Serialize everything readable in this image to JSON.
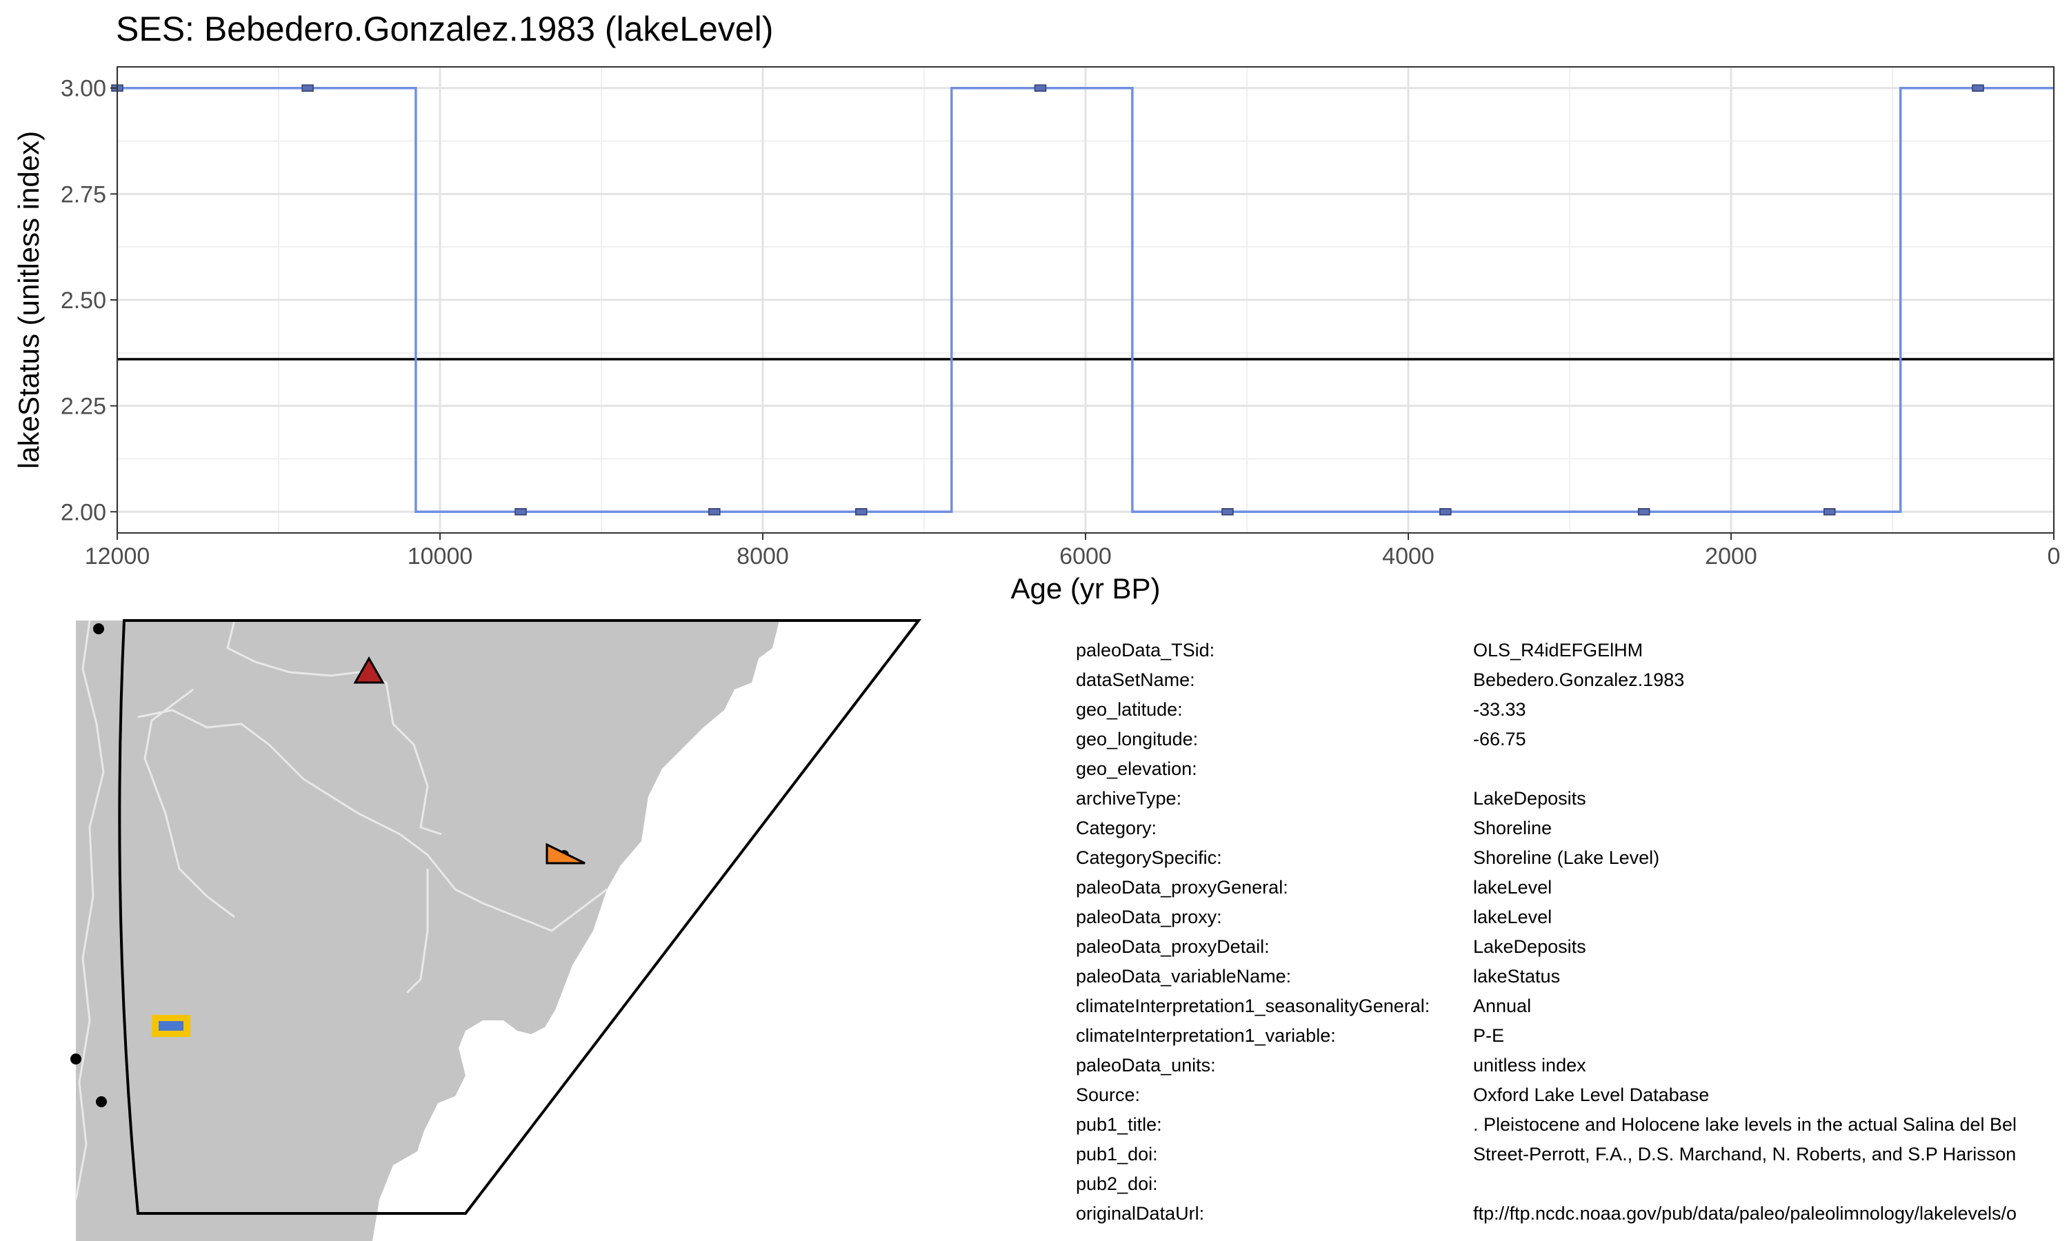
{
  "chart_data": {
    "type": "line",
    "title": "SES: Bebedero.Gonzalez.1983 (lakeLevel)",
    "xlabel": "Age (yr BP)",
    "ylabel": "lakeStatus (unitless index)",
    "xlim": [
      12000,
      0
    ],
    "ylim": [
      3.05,
      1.95
    ],
    "x_reversed": true,
    "y_reversed": true,
    "x_ticks": [
      "12000",
      "10000",
      "8000",
      "6000",
      "4000",
      "2000",
      "0"
    ],
    "x_tick_values": [
      12000,
      10000,
      8000,
      6000,
      4000,
      2000,
      0
    ],
    "y_ticks": [
      "2.00",
      "2.25",
      "2.50",
      "2.75",
      "3.00"
    ],
    "y_tick_values": [
      2.0,
      2.25,
      2.5,
      2.75,
      3.0
    ],
    "grid": true,
    "step_series": {
      "style": "step",
      "color": "#6F8FE3",
      "x": [
        12000,
        10150,
        10150,
        6830,
        6830,
        5710,
        5710,
        950,
        950,
        0
      ],
      "y": [
        3,
        3,
        2,
        2,
        3,
        3,
        2,
        2,
        3,
        3
      ]
    },
    "points": {
      "color": "#5A6FB3",
      "x": [
        12000,
        10820,
        9500,
        8300,
        7390,
        6280,
        5120,
        3770,
        2540,
        1390,
        470
      ],
      "y": [
        3,
        3,
        2,
        2,
        2,
        3,
        2,
        2,
        2,
        2,
        3
      ]
    },
    "reference_line": {
      "y": 2.36,
      "color": "#000000"
    }
  },
  "map": {
    "land_color": "#C4C4C4",
    "border_color": "#E8E8E8",
    "outline_color": "#000000",
    "markers": [
      {
        "name": "triangle-marker",
        "color": "#B22222"
      },
      {
        "name": "right-triangle-marker",
        "color": "#F58220"
      },
      {
        "name": "site-marker",
        "color": "#F5C400",
        "inner_color": "#4A78D0"
      }
    ]
  },
  "metadata": [
    {
      "key": "paleoData_TSid:",
      "value": "OLS_R4idEFGElHM"
    },
    {
      "key": "dataSetName:",
      "value": "Bebedero.Gonzalez.1983"
    },
    {
      "key": "geo_latitude:",
      "value": "-33.33"
    },
    {
      "key": "geo_longitude:",
      "value": "-66.75"
    },
    {
      "key": "geo_elevation:",
      "value": ""
    },
    {
      "key": "archiveType:",
      "value": "LakeDeposits"
    },
    {
      "key": "Category:",
      "value": "Shoreline"
    },
    {
      "key": "CategorySpecific:",
      "value": "Shoreline (Lake Level)"
    },
    {
      "key": "paleoData_proxyGeneral:",
      "value": "lakeLevel"
    },
    {
      "key": "paleoData_proxy:",
      "value": "lakeLevel"
    },
    {
      "key": "paleoData_proxyDetail:",
      "value": "LakeDeposits"
    },
    {
      "key": "paleoData_variableName:",
      "value": "lakeStatus"
    },
    {
      "key": "climateInterpretation1_seasonalityGeneral:",
      "value": "Annual"
    },
    {
      "key": "climateInterpretation1_variable:",
      "value": "P-E"
    },
    {
      "key": "paleoData_units:",
      "value": "unitless index"
    },
    {
      "key": "Source:",
      "value": "Oxford Lake Level Database"
    },
    {
      "key": "pub1_title:",
      "value": ". Pleistocene and Holocene lake levels in the actual Salina del Bel"
    },
    {
      "key": "pub1_doi:",
      "value": "Street-Perrott, F.A., D.S. Marchand, N. Roberts, and S.P Harisson"
    },
    {
      "key": "pub2_doi:",
      "value": ""
    },
    {
      "key": "originalDataUrl:",
      "value": "ftp://ftp.ncdc.noaa.gov/pub/data/paleo/paleolimnology/lakelevels/o"
    }
  ]
}
